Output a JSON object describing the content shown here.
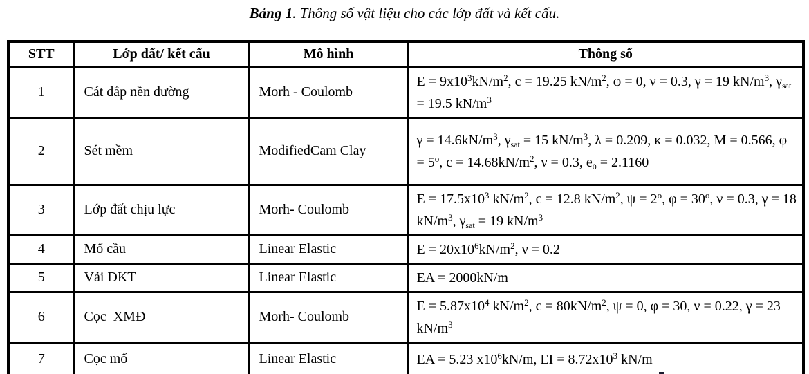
{
  "title": {
    "label": "Bảng 1",
    "rest": ". Thông số vật liệu cho các lớp đất và kết cấu."
  },
  "table": {
    "headers": [
      "STT",
      "Lớp đất/ kết cấu",
      "Mô hình",
      "Thông số"
    ],
    "rows": [
      {
        "stt": "1",
        "layer": "Cát đắp nền đường",
        "model": "Morh - Coulomb",
        "params": [
          {
            "t": "E = 9x10"
          },
          {
            "sup": "3"
          },
          {
            "t": "kN/m"
          },
          {
            "sup": "2"
          },
          {
            "t": ", c = 19.25 kN/m"
          },
          {
            "sup": "2"
          },
          {
            "t": ", φ = 0, ν = 0.3, γ = 19 kN/m"
          },
          {
            "sup": "3"
          },
          {
            "t": ", γ"
          },
          {
            "sub": "sat"
          },
          {
            "t": " = 19.5 kN/m"
          },
          {
            "sup": "3"
          }
        ]
      },
      {
        "stt": "2",
        "layer": "Sét mềm",
        "model": "ModifiedCam Clay",
        "params": [
          {
            "t": "γ = 14.6kN/m"
          },
          {
            "sup": "3"
          },
          {
            "t": ", γ"
          },
          {
            "sub": "sat"
          },
          {
            "t": " = 15 kN/m"
          },
          {
            "sup": "3"
          },
          {
            "t": ", λ = 0.209, κ = 0.032, M = 0.566, φ = 5"
          },
          {
            "sup": "o"
          },
          {
            "t": ", c = 14.68kN/m"
          },
          {
            "sup": "2"
          },
          {
            "t": ", ν = 0.3, e"
          },
          {
            "sub": "0"
          },
          {
            "t": " = 2.1160"
          }
        ]
      },
      {
        "stt": "3",
        "layer": "Lớp đất chịu lực",
        "model": "Morh- Coulomb",
        "params": [
          {
            "t": "E = 17.5x10"
          },
          {
            "sup": "3"
          },
          {
            "t": " kN/m"
          },
          {
            "sup": "2"
          },
          {
            "t": ", c = 12.8 kN/m"
          },
          {
            "sup": "2"
          },
          {
            "t": ", ψ = 2"
          },
          {
            "sup": "o"
          },
          {
            "t": ", φ = 30"
          },
          {
            "sup": "o"
          },
          {
            "t": ", ν = 0.3, γ = 18 kN/m"
          },
          {
            "sup": "3"
          },
          {
            "t": ", γ"
          },
          {
            "sub": "sat"
          },
          {
            "t": " = 19 kN/m"
          },
          {
            "sup": "3"
          }
        ]
      },
      {
        "stt": "4",
        "layer": "Mố cầu",
        "model": "Linear Elastic",
        "params": [
          {
            "t": "E = 20x10"
          },
          {
            "sup": "6"
          },
          {
            "t": "kN/m"
          },
          {
            "sup": "2"
          },
          {
            "t": ", ν = 0.2"
          }
        ]
      },
      {
        "stt": "5",
        "layer": "Vải ĐKT",
        "model": "Linear Elastic",
        "params": [
          {
            "t": "EA = 2000kN/m"
          }
        ]
      },
      {
        "stt": "6",
        "layer": "Cọc  XMĐ",
        "model": "Morh- Coulomb",
        "params": [
          {
            "t": "E = 5.87x10"
          },
          {
            "sup": "4"
          },
          {
            "t": " kN/m"
          },
          {
            "sup": "2"
          },
          {
            "t": ", c = 80kN/m"
          },
          {
            "sup": "2"
          },
          {
            "t": ", ψ = 0, φ = 30, ν = 0.22, γ = 23 kN/m"
          },
          {
            "sup": "3"
          }
        ]
      },
      {
        "stt": "7",
        "layer": "Cọc mố",
        "model": "Linear Elastic",
        "params": [
          {
            "t": "EA = 5.23 x10"
          },
          {
            "sup": "6"
          },
          {
            "t": "kN/m, EI = 8.72x10"
          },
          {
            "sup": "3"
          },
          {
            "t": " kN/m"
          }
        ]
      }
    ]
  },
  "colors": {
    "text": "#000000",
    "border": "#000000",
    "background": "#ffffff"
  }
}
